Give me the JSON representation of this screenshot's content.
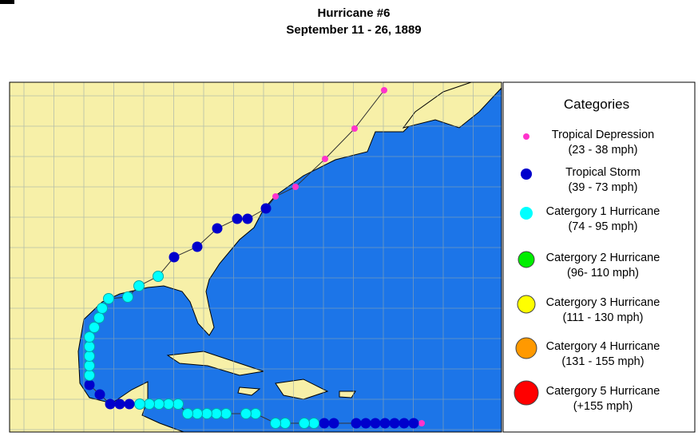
{
  "header": {
    "title": "Hurricane #6",
    "subtitle": "September 11 - 26, 1889"
  },
  "legend": {
    "title": "Categories",
    "items": [
      {
        "name": "Tropical Depression",
        "range": "(23 - 38 mph)",
        "color": "#ff33cc"
      },
      {
        "name": "Tropical Storm",
        "range": "(39 - 73 mph)",
        "color": "#0000cc"
      },
      {
        "name": "Catergory 1 Hurricane",
        "range": "(74 - 95 mph)",
        "color": "#00ffff"
      },
      {
        "name": "Catergory 2 Hurricane",
        "range": "(96- 110 mph)",
        "color": "#00ee00"
      },
      {
        "name": "Catergory 3 Hurricane",
        "range": "(111 - 130 mph)",
        "color": "#ffff00"
      },
      {
        "name": "Catergory 4 Hurricane",
        "range": "(131 - 155 mph)",
        "color": "#ff9900"
      },
      {
        "name": "Catergory 5 Hurricane",
        "range": "(+155 mph)",
        "color": "#ff0000"
      }
    ]
  }
}
